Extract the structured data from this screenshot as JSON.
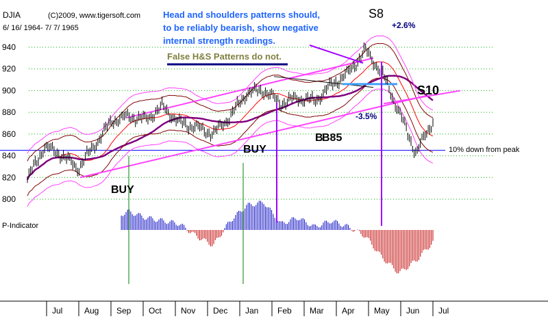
{
  "header": {
    "symbol": "DJIA",
    "copyright": "(C)2009, www.tigersoft.com",
    "date_range": "6/ 16/ 1964- 7/ 7/ 1965"
  },
  "annotations": {
    "headline_1": "Head and shoulders patterns should,",
    "headline_2": "to be reliably bearish, show negative",
    "headline_3": "internal strength readings.",
    "false_hs": "False H&S Patterns do not.",
    "s8": "S8",
    "plus_pct": "+2.6%",
    "s10": "S10",
    "minus_pct": "-3.5%",
    "b_label": "B",
    "b85": "B85",
    "buy_1": "BUY",
    "buy_2": "BUY",
    "peak_note": "10% down from peak",
    "indicator_label": "P-Indicator"
  },
  "colors": {
    "price_bar": "#000000",
    "upper_band": "#800000",
    "ma": "#ff0000",
    "long_ma": "#800080",
    "pink_band": "#ff40ff",
    "channel": "#ff40ff",
    "buy_line": "#008000",
    "sell_line": "#a000ff",
    "blue_line": "#0000ff",
    "grid": "#00aa00",
    "indicator_pos": "#0000c0",
    "indicator_neg": "#c00000",
    "headline_text": "#1e64ff",
    "false_hs_text": "#808040"
  },
  "chart_data": {
    "type": "line",
    "title": "DJIA",
    "y_ticks": [
      800,
      820,
      840,
      860,
      880,
      900,
      920,
      940
    ],
    "ylim": [
      790,
      950
    ],
    "x_months": [
      "Jul",
      "Aug",
      "Sep",
      "Oct",
      "Nov",
      "Dec",
      "Jan",
      "Feb",
      "Mar",
      "Apr",
      "May",
      "Jun",
      "Jul"
    ],
    "price_series": {
      "name": "DJIA",
      "months": [
        "Jul",
        "Jul",
        "Aug",
        "Aug",
        "Sep",
        "Sep",
        "Oct",
        "Oct",
        "Nov",
        "Nov",
        "Dec",
        "Dec",
        "Jan",
        "Jan",
        "Feb",
        "Feb",
        "Mar",
        "Mar",
        "Apr",
        "Apr",
        "May",
        "May",
        "Jun",
        "Jun",
        "Jul"
      ],
      "values": [
        818,
        848,
        841,
        828,
        850,
        872,
        876,
        873,
        885,
        870,
        866,
        860,
        876,
        898,
        900,
        888,
        893,
        890,
        905,
        916,
        937,
        916,
        880,
        842,
        872
      ]
    },
    "reference_line": {
      "value": 845,
      "label": "10% down from peak"
    },
    "signals": [
      {
        "label": "BUY",
        "month": "Sep",
        "type": "buy"
      },
      {
        "label": "BUY",
        "month": "Jan",
        "type": "buy"
      },
      {
        "label": "S8",
        "month": "May",
        "type": "sell"
      },
      {
        "label": "S10",
        "month": "Jun",
        "type": "sell"
      }
    ],
    "p_indicator": {
      "name": "P-Indicator",
      "values": [
        0.5,
        0.3,
        -0.4,
        -0.3,
        -0.1,
        0.4,
        0.6,
        0.4,
        0.3,
        0.2,
        -0.2,
        -0.5,
        0.3,
        0.8,
        0.9,
        0.2,
        0.4,
        0.1,
        0.3,
        0.1,
        -0.2,
        -0.9,
        -1.4,
        -1.0,
        -0.4
      ]
    }
  }
}
